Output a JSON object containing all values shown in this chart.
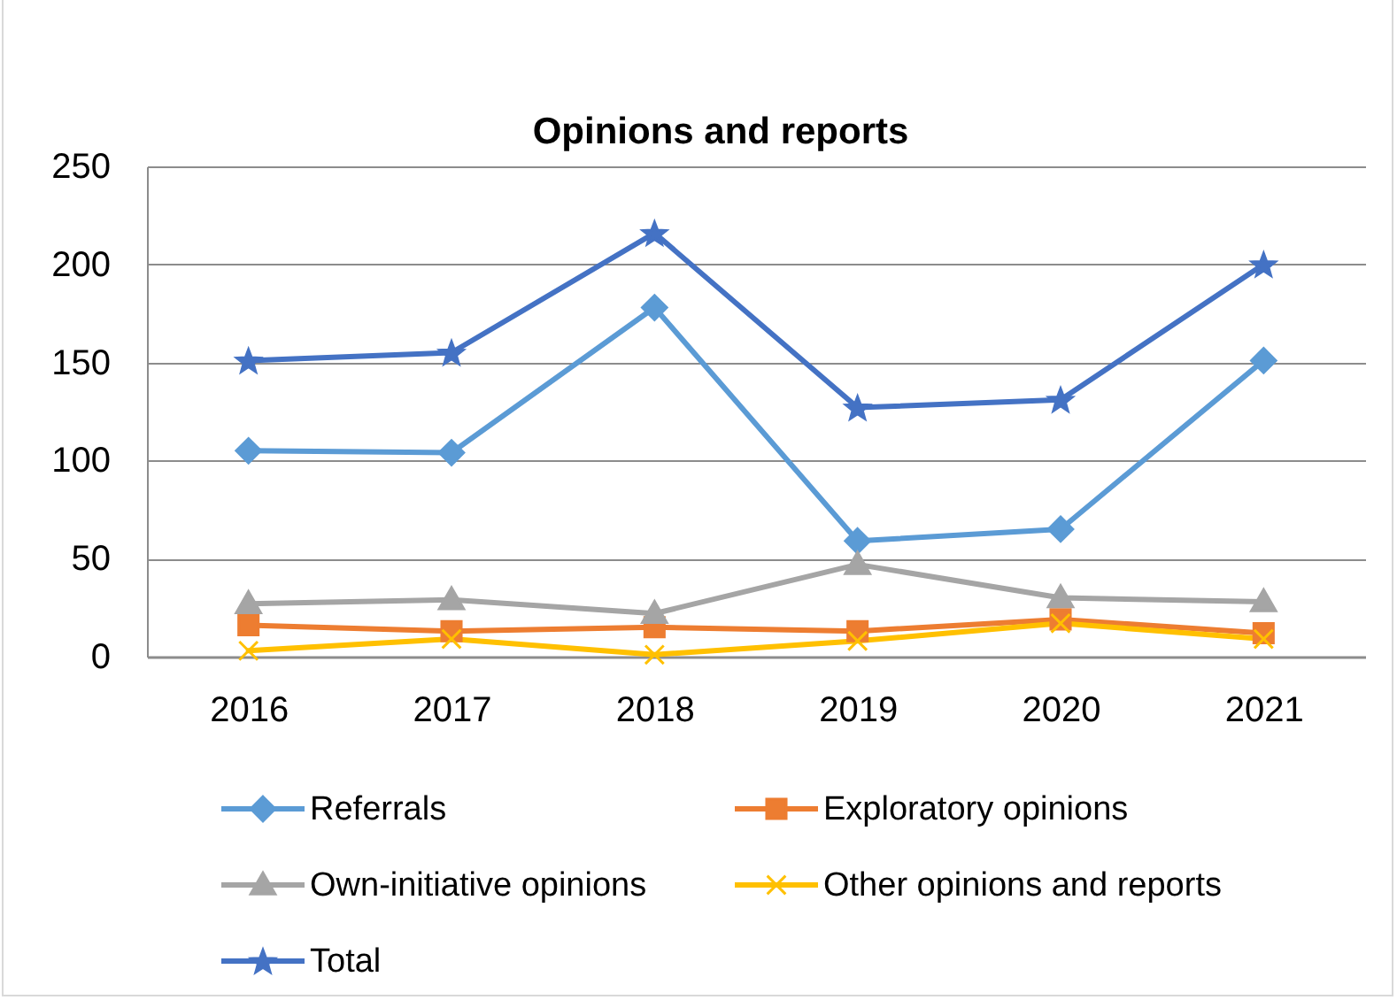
{
  "chart_data": {
    "type": "line",
    "title": "Opinions and reports",
    "categories": [
      "2016",
      "2017",
      "2018",
      "2019",
      "2020",
      "2021"
    ],
    "series": [
      {
        "name": "Referrals",
        "color": "#5b9bd5",
        "marker": "diamond",
        "values": [
          105,
          104,
          178,
          59,
          65,
          151
        ]
      },
      {
        "name": "Exploratory opinions",
        "color": "#ed7d31",
        "marker": "square",
        "values": [
          16,
          13,
          15,
          13,
          19,
          12
        ]
      },
      {
        "name": "Own-initiative opinions",
        "color": "#a5a5a5",
        "marker": "triangle",
        "values": [
          27,
          29,
          22,
          47,
          30,
          28
        ]
      },
      {
        "name": "Other opinions and reports",
        "color": "#ffc000",
        "marker": "cross",
        "values": [
          3,
          9,
          1,
          8,
          17,
          9
        ]
      },
      {
        "name": "Total",
        "color": "#4472c4",
        "marker": "star",
        "values": [
          151,
          155,
          216,
          127,
          131,
          200
        ]
      }
    ],
    "ylim": [
      0,
      250
    ],
    "yticks": [
      0,
      50,
      100,
      150,
      200,
      250
    ],
    "grid": "y",
    "legend": "bottom"
  }
}
